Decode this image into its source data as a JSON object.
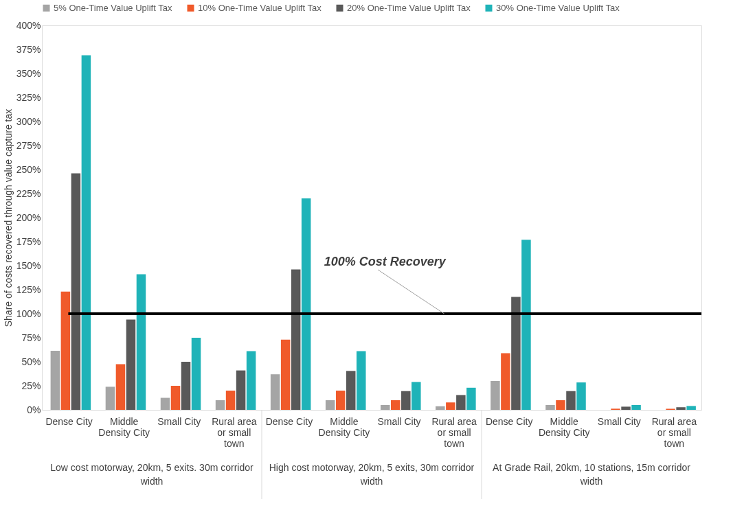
{
  "chart_data": {
    "type": "bar",
    "ylabel": "Share of costs recovered through value capture tax",
    "categories": [
      "Dense City",
      "Middle Density City",
      "Small City",
      "Rural area or small town",
      "Dense City",
      "Middle Density City",
      "Small City",
      "Rural area or small town",
      "Dense City",
      "Middle Density City",
      "Small City",
      "Rural area or small town"
    ],
    "series": [
      {
        "name": "5% One-Time Value Uplift Tax",
        "color": "#a5a5a5",
        "values": [
          61.5,
          24,
          12.5,
          10,
          37,
          10,
          5,
          3.7,
          30,
          5,
          null,
          null
        ]
      },
      {
        "name": "10% One-Time Value Uplift Tax",
        "color": "#f05a2a",
        "values": [
          123,
          47.5,
          25,
          20,
          73,
          20,
          10,
          7.7,
          59,
          10,
          1.2,
          1.1
        ]
      },
      {
        "name": "20% One-Time Value Uplift Tax",
        "color": "#595959",
        "values": [
          246,
          94,
          50,
          41,
          146,
          40.5,
          19.5,
          15.4,
          117.5,
          19.5,
          3.3,
          2.7
        ]
      },
      {
        "name": "30% One-Time Value Uplift Tax",
        "color": "#1fb3b8",
        "values": [
          369,
          141,
          75,
          61,
          220,
          61,
          29,
          23,
          177,
          28.5,
          5,
          4
        ]
      }
    ],
    "ylim": [
      0,
      400
    ],
    "yticks": [
      {
        "value": 0,
        "label": "0%"
      },
      {
        "value": 25,
        "label": "25%"
      },
      {
        "value": 50,
        "label": "50%"
      },
      {
        "value": 75,
        "label": "75%"
      },
      {
        "value": 100,
        "label": "100%"
      },
      {
        "value": 125,
        "label": "125%"
      },
      {
        "value": 150,
        "label": "150%"
      },
      {
        "value": 175,
        "label": "175%"
      },
      {
        "value": 200,
        "label": "200%"
      },
      {
        "value": 225,
        "label": "225%"
      },
      {
        "value": 250,
        "label": "250%"
      },
      {
        "value": 275,
        "label": "275%"
      },
      {
        "value": 300,
        "label": "300%"
      },
      {
        "value": 325,
        "label": "325%"
      },
      {
        "value": 350,
        "label": "350%"
      },
      {
        "value": 375,
        "label": "375%"
      },
      {
        "value": 400,
        "label": "400%"
      }
    ],
    "ref_lines": [
      {
        "axis": "y",
        "value": 100,
        "label": "100% Cost Recovery",
        "color": "#000000"
      }
    ],
    "annotations": [
      "Low cost motorway, 20km, 5 exits. 30m corridor width",
      "High cost motorway, 20km, 5 exits, 30m corridor width",
      "At Grade Rail, 20km, 10 stations, 15m corridor width"
    ],
    "grid": false,
    "legend": "top"
  }
}
